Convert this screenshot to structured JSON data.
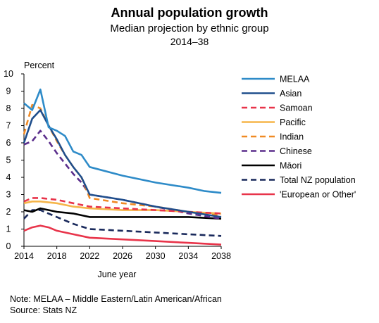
{
  "header": {
    "title": "Annual population growth",
    "subtitle": "Median projection by ethnic group",
    "period": "2014–38"
  },
  "notes": {
    "note": "Note: MELAA – Middle Eastern/Latin American/African",
    "source": "Source: Stats NZ"
  },
  "colors": {
    "melaa": "#2e8bc8",
    "asian": "#1f4e8c",
    "samoan": "#e8344a",
    "pacific": "#f5b54a",
    "indian": "#f08a24",
    "chinese": "#5b2e8c",
    "maori": "#000000",
    "total": "#1a2a5c",
    "european": "#e8344a"
  },
  "chart_data": {
    "type": "line",
    "title": "Annual population growth",
    "subtitle": "Median projection by ethnic group",
    "ylabel": "Percent",
    "xlabel": "June year",
    "xlim": [
      2014,
      2038
    ],
    "ylim": [
      0,
      10
    ],
    "x_ticks": [
      "2014",
      "2018",
      "2022",
      "2026",
      "2030",
      "2034",
      "2038"
    ],
    "y_ticks": [
      "0",
      "1",
      "2",
      "3",
      "4",
      "5",
      "6",
      "7",
      "8",
      "9",
      "10"
    ],
    "legend_position": "right",
    "series": [
      {
        "name": "MELAA",
        "color": "#2e8bc8",
        "dash": "solid",
        "x": [
          2014,
          2015,
          2016,
          2017,
          2018,
          2019,
          2020,
          2021,
          2022,
          2026,
          2030,
          2034,
          2036,
          2038
        ],
        "y": [
          8.3,
          7.9,
          9.1,
          6.9,
          6.7,
          6.4,
          5.5,
          5.3,
          4.6,
          4.1,
          3.7,
          3.4,
          3.2,
          3.1
        ]
      },
      {
        "name": "Asian",
        "color": "#1f4e8c",
        "dash": "solid",
        "x": [
          2014,
          2015,
          2016,
          2017,
          2018,
          2019,
          2020,
          2021,
          2022,
          2026,
          2030,
          2034,
          2038
        ],
        "y": [
          6.0,
          7.4,
          7.9,
          7.0,
          6.2,
          5.3,
          4.6,
          4.0,
          3.0,
          2.7,
          2.3,
          2.0,
          1.7
        ]
      },
      {
        "name": "Samoan",
        "color": "#e8344a",
        "dash": "dashed",
        "x": [
          2014,
          2015,
          2016,
          2018,
          2020,
          2022,
          2026,
          2030,
          2034,
          2038
        ],
        "y": [
          2.6,
          2.8,
          2.8,
          2.7,
          2.5,
          2.3,
          2.2,
          2.1,
          2.0,
          1.9
        ]
      },
      {
        "name": "Pacific",
        "color": "#f5b54a",
        "dash": "solid",
        "x": [
          2014,
          2015,
          2016,
          2018,
          2020,
          2022,
          2026,
          2030,
          2034,
          2038
        ],
        "y": [
          2.5,
          2.6,
          2.6,
          2.5,
          2.3,
          2.2,
          2.1,
          2.1,
          2.0,
          1.9
        ]
      },
      {
        "name": "Indian",
        "color": "#f08a24",
        "dash": "dashed",
        "x": [
          2014,
          2015,
          2016,
          2017,
          2018,
          2019,
          2020,
          2021,
          2022,
          2026,
          2030,
          2034,
          2038
        ],
        "y": [
          6.5,
          8.2,
          8.0,
          7.0,
          6.1,
          5.3,
          4.6,
          4.0,
          2.8,
          2.5,
          2.3,
          2.0,
          1.8
        ]
      },
      {
        "name": "Chinese",
        "color": "#5b2e8c",
        "dash": "dashed",
        "x": [
          2014,
          2015,
          2016,
          2017,
          2018,
          2019,
          2020,
          2021,
          2022,
          2026,
          2030,
          2034,
          2038
        ],
        "y": [
          5.9,
          6.1,
          6.7,
          6.1,
          5.4,
          4.8,
          4.2,
          3.7,
          3.0,
          2.7,
          2.3,
          1.9,
          1.6
        ]
      },
      {
        "name": "Māori",
        "color": "#000000",
        "dash": "solid",
        "x": [
          2014,
          2015,
          2016,
          2018,
          2020,
          2022,
          2026,
          2030,
          2034,
          2038
        ],
        "y": [
          2.1,
          2.0,
          2.2,
          2.0,
          1.9,
          1.7,
          1.7,
          1.7,
          1.7,
          1.6
        ]
      },
      {
        "name": "Total NZ population",
        "color": "#1a2a5c",
        "dash": "dashed",
        "x": [
          2014,
          2015,
          2016,
          2018,
          2020,
          2022,
          2026,
          2030,
          2034,
          2038
        ],
        "y": [
          1.6,
          2.1,
          2.1,
          1.7,
          1.3,
          1.0,
          0.9,
          0.8,
          0.7,
          0.6
        ]
      },
      {
        "name": "'European or Other'",
        "color": "#e8344a",
        "dash": "solid",
        "x": [
          2014,
          2015,
          2016,
          2017,
          2018,
          2020,
          2022,
          2026,
          2030,
          2034,
          2038
        ],
        "y": [
          0.9,
          1.1,
          1.2,
          1.1,
          0.9,
          0.7,
          0.5,
          0.4,
          0.3,
          0.2,
          0.1
        ]
      }
    ]
  }
}
